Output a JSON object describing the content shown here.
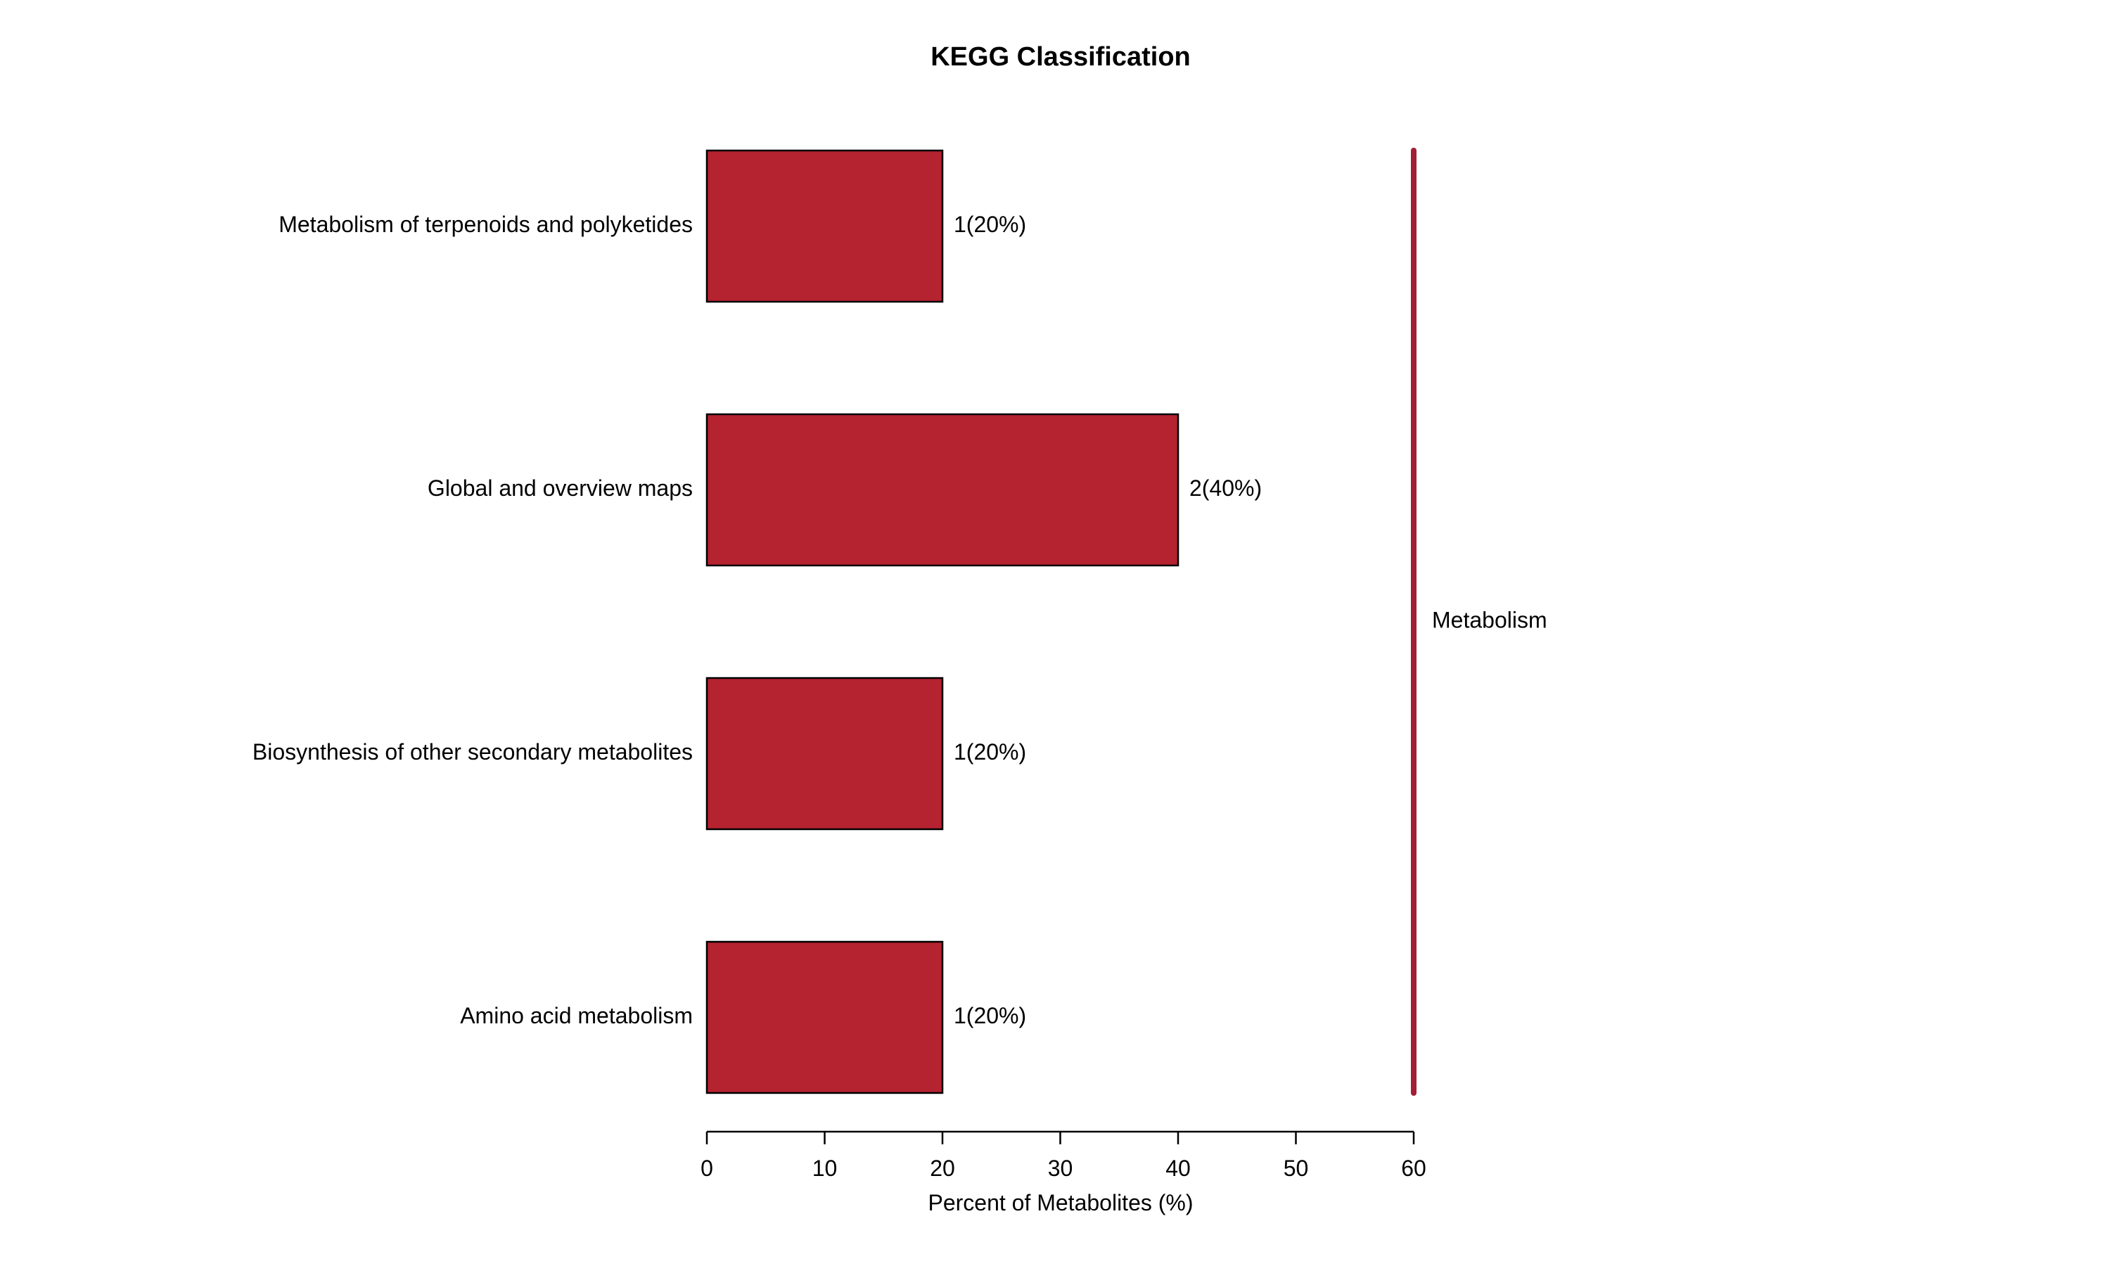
{
  "chart_data": {
    "type": "bar",
    "orientation": "horizontal",
    "title": "KEGG Classification",
    "xlabel": "Percent of Metabolites (%)",
    "ylabel": "",
    "xlim": [
      0,
      60
    ],
    "xticks": [
      0,
      10,
      20,
      30,
      40,
      50,
      60
    ],
    "categories": [
      "Metabolism of terpenoids and polyketides",
      "Global and overview maps",
      "Biosynthesis of other secondary metabolites",
      "Amino acid metabolism"
    ],
    "values": [
      20,
      40,
      20,
      20
    ],
    "counts": [
      1,
      2,
      1,
      1
    ],
    "data_labels": [
      "1(20%)",
      "2(40%)",
      "1(20%)",
      "1(20%)"
    ],
    "group": {
      "label": "Metabolism",
      "color": "#a31f35"
    },
    "bar_color": "#b52230",
    "bar_edge_color": "#000000",
    "grid": false,
    "legend": "none"
  }
}
